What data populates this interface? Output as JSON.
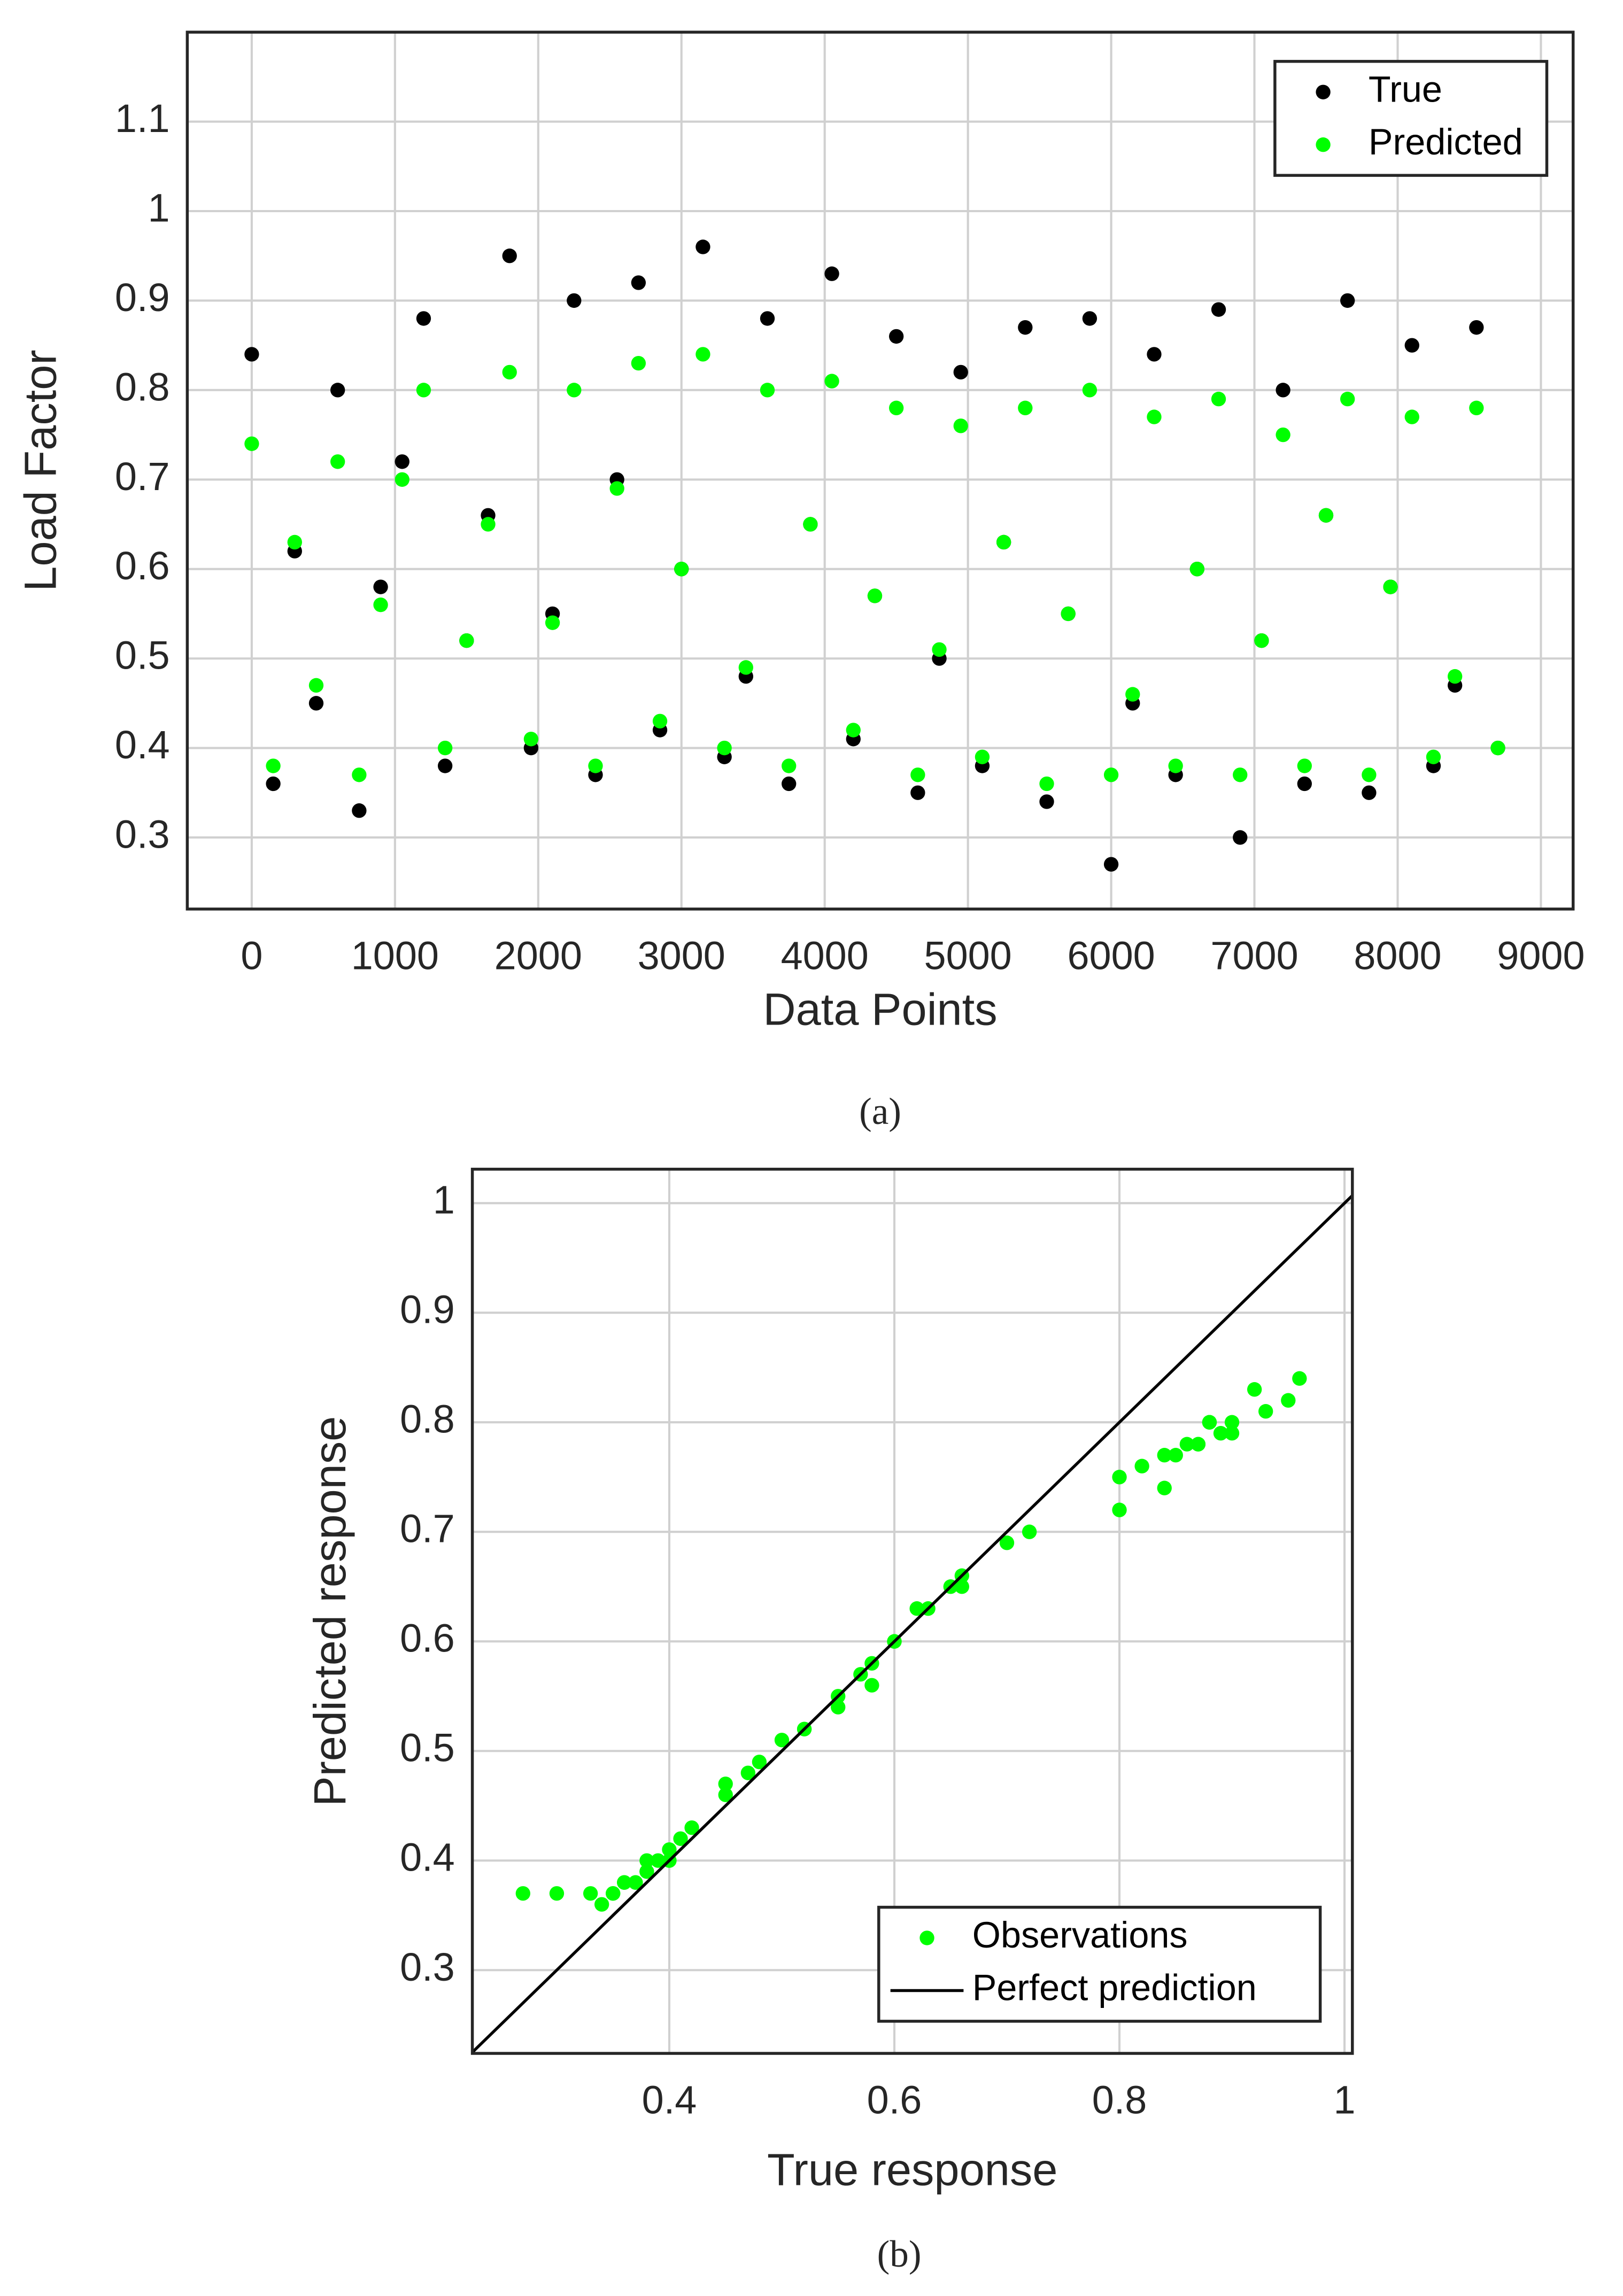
{
  "chart_data": [
    {
      "type": "scatter",
      "caption": "(a)",
      "xlabel": "Data Points",
      "ylabel": "Load Factor",
      "xlim": [
        -450,
        9225
      ],
      "ylim": [
        0.22,
        1.2
      ],
      "xticks": [
        0,
        1000,
        2000,
        3000,
        4000,
        5000,
        6000,
        7000,
        8000,
        9000
      ],
      "yticks": [
        0.3,
        0.4,
        0.5,
        0.6,
        0.7,
        0.8,
        0.9,
        1,
        1.1
      ],
      "grid": true,
      "legend": "upper right",
      "x": [
        0,
        150,
        300,
        450,
        600,
        750,
        900,
        1050,
        1200,
        1350,
        1500,
        1650,
        1800,
        1950,
        2100,
        2250,
        2400,
        2550,
        2700,
        2850,
        3000,
        3150,
        3300,
        3450,
        3600,
        3750,
        3900,
        4050,
        4200,
        4350,
        4500,
        4650,
        4800,
        4950,
        5100,
        5250,
        5400,
        5550,
        5700,
        5850,
        6000,
        6150,
        6300,
        6450,
        6600,
        6750,
        6900,
        7050,
        7200,
        7350,
        7500,
        7650,
        7800,
        7950,
        8100,
        8250,
        8400,
        8550,
        8700
      ],
      "series": [
        {
          "name": "True",
          "color": "#000000",
          "values": [
            0.84,
            0.36,
            0.62,
            0.45,
            0.8,
            0.33,
            0.58,
            0.72,
            0.88,
            0.38,
            0.52,
            0.66,
            0.95,
            0.4,
            0.55,
            0.9,
            0.37,
            0.7,
            0.92,
            0.42,
            0.6,
            0.96,
            0.39,
            0.48,
            0.88,
            0.36,
            0.65,
            0.93,
            0.41,
            0.57,
            0.86,
            0.35,
            0.5,
            0.82,
            0.38,
            0.63,
            0.87,
            0.34,
            0.55,
            0.88,
            0.27,
            0.45,
            0.84,
            0.37,
            0.6,
            0.89,
            0.3,
            0.52,
            0.8,
            0.36,
            0.66,
            0.9,
            0.35,
            0.58,
            0.85,
            0.38,
            0.47,
            0.87,
            0.4
          ]
        },
        {
          "name": "Predicted",
          "color": "#00ff00",
          "values": [
            0.74,
            0.38,
            0.63,
            0.47,
            0.72,
            0.37,
            0.56,
            0.7,
            0.8,
            0.4,
            0.52,
            0.65,
            0.82,
            0.41,
            0.54,
            0.8,
            0.38,
            0.69,
            0.83,
            0.43,
            0.6,
            0.84,
            0.4,
            0.49,
            0.8,
            0.38,
            0.65,
            0.81,
            0.42,
            0.57,
            0.78,
            0.37,
            0.51,
            0.76,
            0.39,
            0.63,
            0.78,
            0.36,
            0.55,
            0.8,
            0.37,
            0.46,
            0.77,
            0.38,
            0.6,
            0.79,
            0.37,
            0.52,
            0.75,
            0.38,
            0.66,
            0.79,
            0.37,
            0.58,
            0.77,
            0.39,
            0.48,
            0.78,
            0.4
          ]
        }
      ]
    },
    {
      "type": "scatter",
      "caption": "(b)",
      "xlabel": "True response",
      "ylabel": "Predicted response",
      "xlim": [
        0.225,
        1.007
      ],
      "ylim": [
        0.224,
        1.031
      ],
      "xticks": [
        0.4,
        0.6,
        0.8,
        1
      ],
      "yticks": [
        0.3,
        0.4,
        0.5,
        0.6,
        0.7,
        0.8,
        0.9,
        1
      ],
      "grid": true,
      "legend": "lower right",
      "series": [
        {
          "name": "Observations",
          "color": "#00ff00",
          "x": [
            0.84,
            0.36,
            0.62,
            0.45,
            0.8,
            0.33,
            0.58,
            0.72,
            0.88,
            0.38,
            0.52,
            0.66,
            0.95,
            0.4,
            0.55,
            0.9,
            0.37,
            0.7,
            0.92,
            0.42,
            0.6,
            0.96,
            0.39,
            0.48,
            0.88,
            0.36,
            0.65,
            0.93,
            0.41,
            0.57,
            0.86,
            0.35,
            0.5,
            0.82,
            0.38,
            0.63,
            0.87,
            0.34,
            0.55,
            0.88,
            0.27,
            0.45,
            0.84,
            0.37,
            0.6,
            0.89,
            0.3,
            0.52,
            0.8,
            0.36,
            0.66,
            0.9,
            0.35,
            0.58,
            0.85,
            0.38,
            0.47,
            0.87,
            0.4
          ],
          "values": [
            0.74,
            0.38,
            0.63,
            0.47,
            0.72,
            0.37,
            0.56,
            0.7,
            0.8,
            0.4,
            0.52,
            0.65,
            0.82,
            0.41,
            0.54,
            0.8,
            0.38,
            0.69,
            0.83,
            0.43,
            0.6,
            0.84,
            0.4,
            0.49,
            0.8,
            0.38,
            0.65,
            0.81,
            0.42,
            0.57,
            0.78,
            0.37,
            0.51,
            0.76,
            0.39,
            0.63,
            0.78,
            0.36,
            0.55,
            0.8,
            0.37,
            0.46,
            0.77,
            0.38,
            0.6,
            0.79,
            0.37,
            0.52,
            0.75,
            0.38,
            0.66,
            0.79,
            0.37,
            0.58,
            0.77,
            0.39,
            0.48,
            0.78,
            0.4
          ]
        },
        {
          "name": "Perfect prediction",
          "type": "line",
          "color": "#000000",
          "x": [
            0.225,
            1.007
          ],
          "values": [
            0.225,
            1.007
          ]
        }
      ]
    }
  ]
}
